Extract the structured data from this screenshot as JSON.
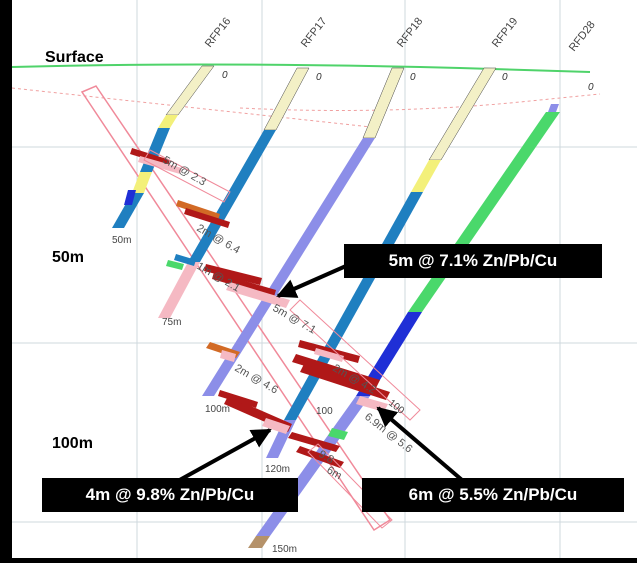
{
  "labels": {
    "surface": "Surface",
    "depth_50": "50m",
    "depth_100": "100m"
  },
  "holes": [
    "RFP16",
    "RFP17",
    "RFP18",
    "RFP19",
    "RFD28"
  ],
  "collar_depth": "0",
  "hole_end_depths": {
    "rfp16": "50m",
    "rfp17": "75m",
    "rfp18": "100m",
    "rfp19": "120m",
    "rfd28": "150m"
  },
  "hole_marks": {
    "m100": "100"
  },
  "intercept_tags": {
    "t1": "5m @ 2.3",
    "t2": "2m @ 6.4",
    "t3": "1m @ 2.1",
    "t4": "5m @ 7.1",
    "t5": "2m @ 4.6",
    "t6": "2m @ 4.2",
    "t7": "6.9m @ 5.6",
    "t8": "9.8",
    "t9": "6m"
  },
  "callouts": {
    "c1": "5m @ 7.1% Zn/Pb/Cu",
    "c2": "4m @ 9.8% Zn/Pb/Cu",
    "c3": "6m @ 5.5% Zn/Pb/Cu"
  },
  "colors": {
    "background": "#000000",
    "section": "#ffffff",
    "grid": "#cfd8de",
    "surface_line": "#4fd36a",
    "hole_blue": "#1f7fc0",
    "hole_violet": "#8c8ee8",
    "hole_green": "#4ad86b",
    "hole_dark_blue": "#1f2fd6",
    "hole_yellow": "#f3f07a",
    "hole_cream": "#f3f0c6",
    "mineral_red": "#b01818",
    "mineral_pink": "#f5b9c3",
    "mineral_orange": "#d26a25",
    "arrow": "#000000"
  }
}
